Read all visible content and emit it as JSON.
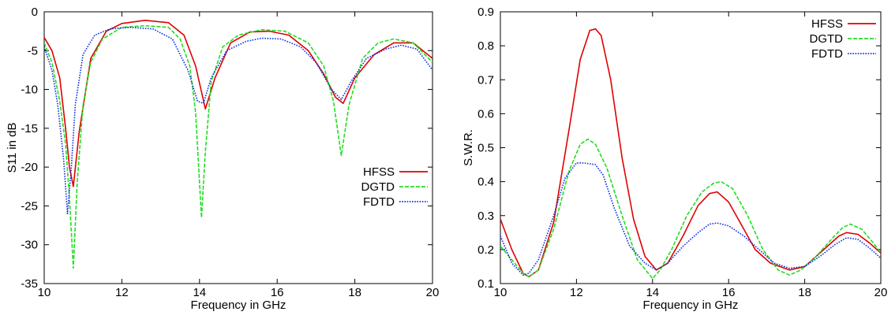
{
  "colors": {
    "HFSS": "#e00000",
    "DGTD": "#22dd22",
    "FDTD": "#1030e0"
  },
  "chart_data": [
    {
      "type": "line",
      "xlabel": "Frequency in GHz",
      "ylabel": "S11 in dB",
      "xlim": [
        10,
        20
      ],
      "ylim": [
        -35,
        0
      ],
      "xticks": [
        10,
        12,
        14,
        16,
        18,
        20
      ],
      "yticks": [
        0,
        -5,
        -10,
        -15,
        -20,
        -25,
        -30,
        -35
      ],
      "legend_position": "center-right",
      "grid": false,
      "series": [
        {
          "name": "HFSS",
          "dash": "solid",
          "x": [
            10.0,
            10.2,
            10.4,
            10.55,
            10.65,
            10.75,
            10.9,
            11.2,
            11.6,
            12.0,
            12.6,
            13.2,
            13.6,
            13.9,
            14.15,
            14.4,
            14.8,
            15.3,
            15.8,
            16.3,
            16.8,
            17.2,
            17.5,
            17.7,
            18.0,
            18.5,
            19.0,
            19.5,
            20.0
          ],
          "y": [
            -3.3,
            -5.0,
            -8.5,
            -15.0,
            -20.0,
            -22.5,
            -15.5,
            -6.0,
            -2.5,
            -1.5,
            -1.1,
            -1.4,
            -3.0,
            -7.0,
            -12.5,
            -8.5,
            -4.0,
            -2.6,
            -2.5,
            -3.0,
            -5.0,
            -8.0,
            -11.0,
            -11.8,
            -8.5,
            -5.5,
            -4.0,
            -4.0,
            -6.0
          ]
        },
        {
          "name": "DGTD",
          "dash": "dashed",
          "x": [
            10.0,
            10.2,
            10.4,
            10.55,
            10.65,
            10.75,
            10.85,
            11.0,
            11.2,
            11.5,
            12.0,
            12.6,
            13.2,
            13.5,
            13.75,
            13.9,
            14.0,
            14.05,
            14.15,
            14.3,
            14.6,
            15.0,
            15.6,
            16.2,
            16.8,
            17.2,
            17.45,
            17.65,
            17.85,
            18.2,
            18.6,
            19.0,
            19.5,
            20.0
          ],
          "y": [
            -4.0,
            -6.5,
            -11.5,
            -17.0,
            -24.0,
            -33.0,
            -22.0,
            -12.0,
            -6.5,
            -3.5,
            -2.0,
            -1.8,
            -2.0,
            -3.5,
            -7.0,
            -13.0,
            -22.0,
            -26.5,
            -18.0,
            -9.0,
            -4.5,
            -3.0,
            -2.3,
            -2.5,
            -4.0,
            -7.0,
            -11.5,
            -18.5,
            -12.0,
            -6.0,
            -4.0,
            -3.5,
            -4.0,
            -6.5
          ]
        },
        {
          "name": "FDTD",
          "dash": "dotted",
          "x": [
            10.0,
            10.2,
            10.35,
            10.5,
            10.6,
            10.7,
            10.8,
            11.0,
            11.3,
            11.7,
            12.2,
            12.8,
            13.3,
            13.7,
            13.95,
            14.1,
            14.3,
            14.7,
            15.2,
            15.6,
            16.1,
            16.6,
            17.0,
            17.4,
            17.65,
            17.9,
            18.3,
            18.8,
            19.2,
            19.6,
            20.0
          ],
          "y": [
            -4.5,
            -7.5,
            -12.0,
            -19.0,
            -26.0,
            -20.0,
            -12.0,
            -5.5,
            -3.0,
            -2.2,
            -2.0,
            -2.2,
            -3.5,
            -7.5,
            -11.5,
            -11.8,
            -8.5,
            -5.0,
            -3.8,
            -3.4,
            -3.5,
            -4.5,
            -6.5,
            -10.0,
            -11.3,
            -9.0,
            -6.0,
            -4.8,
            -4.3,
            -4.8,
            -7.5
          ]
        }
      ]
    },
    {
      "type": "line",
      "xlabel": "Frequency in GHz",
      "ylabel": "S.W.R.",
      "xlim": [
        10,
        20
      ],
      "ylim": [
        0.1,
        0.9
      ],
      "xticks": [
        10,
        12,
        14,
        16,
        18,
        20
      ],
      "yticks": [
        0.1,
        0.2,
        0.3,
        0.4,
        0.5,
        0.6,
        0.7,
        0.8,
        0.9
      ],
      "yticklabels": [
        "0.1",
        "0.2",
        "0.3",
        "0.4",
        "0.5",
        "0.6",
        "0.7",
        "0.8",
        "0.9"
      ],
      "legend_position": "top-right",
      "grid": false,
      "series": [
        {
          "name": "HFSS",
          "dash": "solid",
          "x": [
            10.0,
            10.3,
            10.6,
            10.75,
            11.0,
            11.4,
            11.8,
            12.1,
            12.35,
            12.5,
            12.65,
            12.9,
            13.2,
            13.5,
            13.8,
            14.1,
            14.4,
            14.8,
            15.2,
            15.5,
            15.7,
            16.0,
            16.3,
            16.7,
            17.1,
            17.6,
            18.0,
            18.5,
            18.9,
            19.1,
            19.4,
            19.7,
            20.0
          ],
          "y": [
            0.29,
            0.2,
            0.13,
            0.12,
            0.14,
            0.28,
            0.55,
            0.76,
            0.845,
            0.85,
            0.83,
            0.7,
            0.47,
            0.29,
            0.18,
            0.14,
            0.16,
            0.24,
            0.33,
            0.365,
            0.37,
            0.34,
            0.28,
            0.2,
            0.16,
            0.14,
            0.15,
            0.2,
            0.24,
            0.25,
            0.245,
            0.22,
            0.19
          ]
        },
        {
          "name": "DGTD",
          "dash": "dashed",
          "x": [
            10.0,
            10.3,
            10.6,
            10.75,
            11.0,
            11.4,
            11.8,
            12.1,
            12.3,
            12.5,
            12.8,
            13.2,
            13.6,
            14.0,
            14.2,
            14.5,
            14.9,
            15.3,
            15.6,
            15.8,
            16.1,
            16.5,
            16.9,
            17.3,
            17.6,
            17.9,
            18.3,
            18.7,
            19.0,
            19.2,
            19.5,
            19.8,
            20.0
          ],
          "y": [
            0.21,
            0.17,
            0.13,
            0.12,
            0.14,
            0.26,
            0.43,
            0.51,
            0.525,
            0.51,
            0.44,
            0.3,
            0.17,
            0.115,
            0.14,
            0.2,
            0.3,
            0.37,
            0.395,
            0.4,
            0.38,
            0.3,
            0.2,
            0.14,
            0.125,
            0.14,
            0.18,
            0.23,
            0.265,
            0.275,
            0.26,
            0.22,
            0.19
          ]
        },
        {
          "name": "FDTD",
          "dash": "dotted",
          "x": [
            10.0,
            10.3,
            10.6,
            10.75,
            11.0,
            11.4,
            11.7,
            12.0,
            12.2,
            12.5,
            12.7,
            13.0,
            13.4,
            13.8,
            14.1,
            14.4,
            14.8,
            15.2,
            15.5,
            15.7,
            16.0,
            16.4,
            16.8,
            17.2,
            17.6,
            18.0,
            18.4,
            18.8,
            19.1,
            19.4,
            19.7,
            20.0
          ],
          "y": [
            0.24,
            0.16,
            0.125,
            0.13,
            0.17,
            0.3,
            0.41,
            0.455,
            0.455,
            0.45,
            0.42,
            0.32,
            0.21,
            0.16,
            0.14,
            0.16,
            0.21,
            0.25,
            0.275,
            0.278,
            0.27,
            0.24,
            0.2,
            0.16,
            0.145,
            0.15,
            0.18,
            0.215,
            0.235,
            0.23,
            0.205,
            0.175
          ]
        }
      ]
    }
  ]
}
